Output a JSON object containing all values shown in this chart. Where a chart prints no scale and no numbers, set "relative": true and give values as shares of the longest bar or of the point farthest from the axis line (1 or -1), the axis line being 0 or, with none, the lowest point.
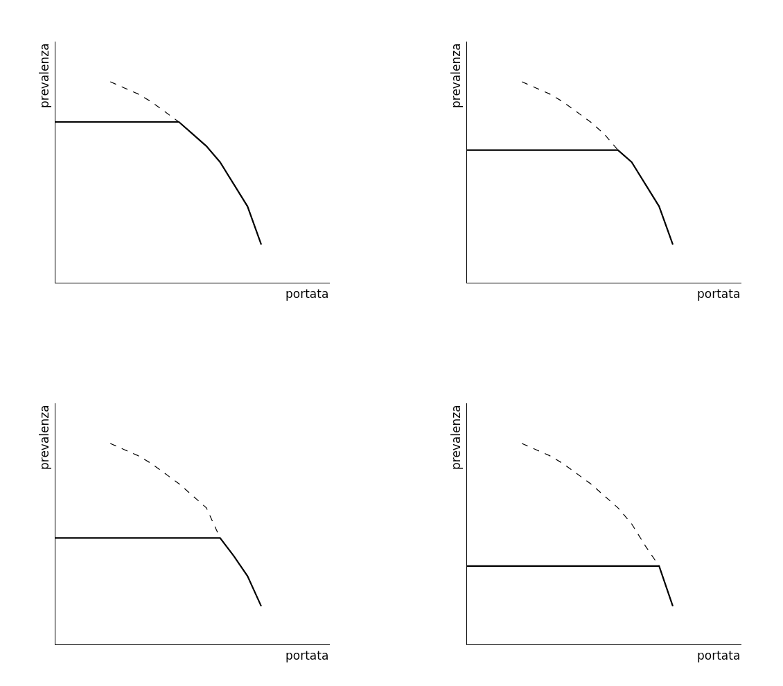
{
  "chart_data": [
    {
      "type": "line",
      "relative": true,
      "xlabel": "portata",
      "ylabel": "prevalenza",
      "categories": [
        null,
        null,
        null,
        null,
        null,
        null,
        null,
        null,
        null,
        null,
        null,
        null,
        null,
        null,
        null,
        null,
        null,
        null,
        null,
        null,
        null
      ],
      "series": [
        {
          "color": "#000000",
          "line_style": "dashed",
          "values": [
            null,
            null,
            null,
            null,
            1,
            0.97,
            0.94,
            0.9,
            0.85,
            0.8,
            null,
            null,
            null,
            null,
            null,
            null,
            null,
            null,
            null,
            null,
            null
          ]
        },
        {
          "color": "#000000",
          "line_style": "solid",
          "values": [
            0.8,
            0.8,
            0.8,
            0.8,
            0.8,
            0.8,
            0.8,
            0.8,
            0.8,
            0.8,
            0.74,
            0.68,
            0.6,
            0.49,
            0.38,
            0.19,
            null,
            null,
            null,
            null,
            null
          ]
        }
      ]
    },
    {
      "type": "line",
      "relative": true,
      "xlabel": "portata",
      "ylabel": "prevalenza",
      "categories": [
        null,
        null,
        null,
        null,
        null,
        null,
        null,
        null,
        null,
        null,
        null,
        null,
        null,
        null,
        null,
        null,
        null,
        null,
        null,
        null,
        null
      ],
      "series": [
        {
          "color": "#000000",
          "line_style": "dashed",
          "values": [
            null,
            null,
            null,
            null,
            1,
            0.97,
            0.94,
            0.9,
            0.85,
            0.8,
            0.74,
            0.66,
            null,
            null,
            null,
            null,
            null,
            null,
            null,
            null,
            null
          ]
        },
        {
          "color": "#000000",
          "line_style": "solid",
          "values": [
            0.66,
            0.66,
            0.66,
            0.66,
            0.66,
            0.66,
            0.66,
            0.66,
            0.66,
            0.66,
            0.66,
            0.66,
            0.6,
            0.49,
            0.38,
            0.19,
            null,
            null,
            null,
            null,
            null
          ]
        }
      ]
    },
    {
      "type": "line",
      "relative": true,
      "xlabel": "portata",
      "ylabel": "prevalenza",
      "categories": [
        null,
        null,
        null,
        null,
        null,
        null,
        null,
        null,
        null,
        null,
        null,
        null,
        null,
        null,
        null,
        null,
        null,
        null,
        null,
        null,
        null
      ],
      "series": [
        {
          "color": "#000000",
          "line_style": "dashed",
          "values": [
            null,
            null,
            null,
            null,
            1,
            0.97,
            0.94,
            0.9,
            0.85,
            0.8,
            0.74,
            0.68,
            0.53,
            null,
            null,
            null,
            null,
            null,
            null,
            null,
            null
          ]
        },
        {
          "color": "#000000",
          "line_style": "solid",
          "values": [
            0.53,
            0.53,
            0.53,
            0.53,
            0.53,
            0.53,
            0.53,
            0.53,
            0.53,
            0.53,
            0.53,
            0.53,
            0.53,
            0.44,
            0.34,
            0.19,
            null,
            null,
            null,
            null,
            null
          ]
        }
      ]
    },
    {
      "type": "line",
      "relative": true,
      "xlabel": "portata",
      "ylabel": "prevalenza",
      "categories": [
        null,
        null,
        null,
        null,
        null,
        null,
        null,
        null,
        null,
        null,
        null,
        null,
        null,
        null,
        null,
        null,
        null,
        null,
        null,
        null,
        null
      ],
      "series": [
        {
          "color": "#000000",
          "line_style": "dashed",
          "values": [
            null,
            null,
            null,
            null,
            1,
            0.97,
            0.94,
            0.9,
            0.85,
            0.8,
            0.74,
            0.68,
            0.6,
            0.49,
            0.39,
            null,
            null,
            null,
            null,
            null,
            null
          ]
        },
        {
          "color": "#000000",
          "line_style": "solid",
          "values": [
            0.39,
            0.39,
            0.39,
            0.39,
            0.39,
            0.39,
            0.39,
            0.39,
            0.39,
            0.39,
            0.39,
            0.39,
            0.39,
            0.39,
            0.39,
            0.19,
            null,
            null,
            null,
            null,
            null
          ]
        }
      ]
    }
  ]
}
